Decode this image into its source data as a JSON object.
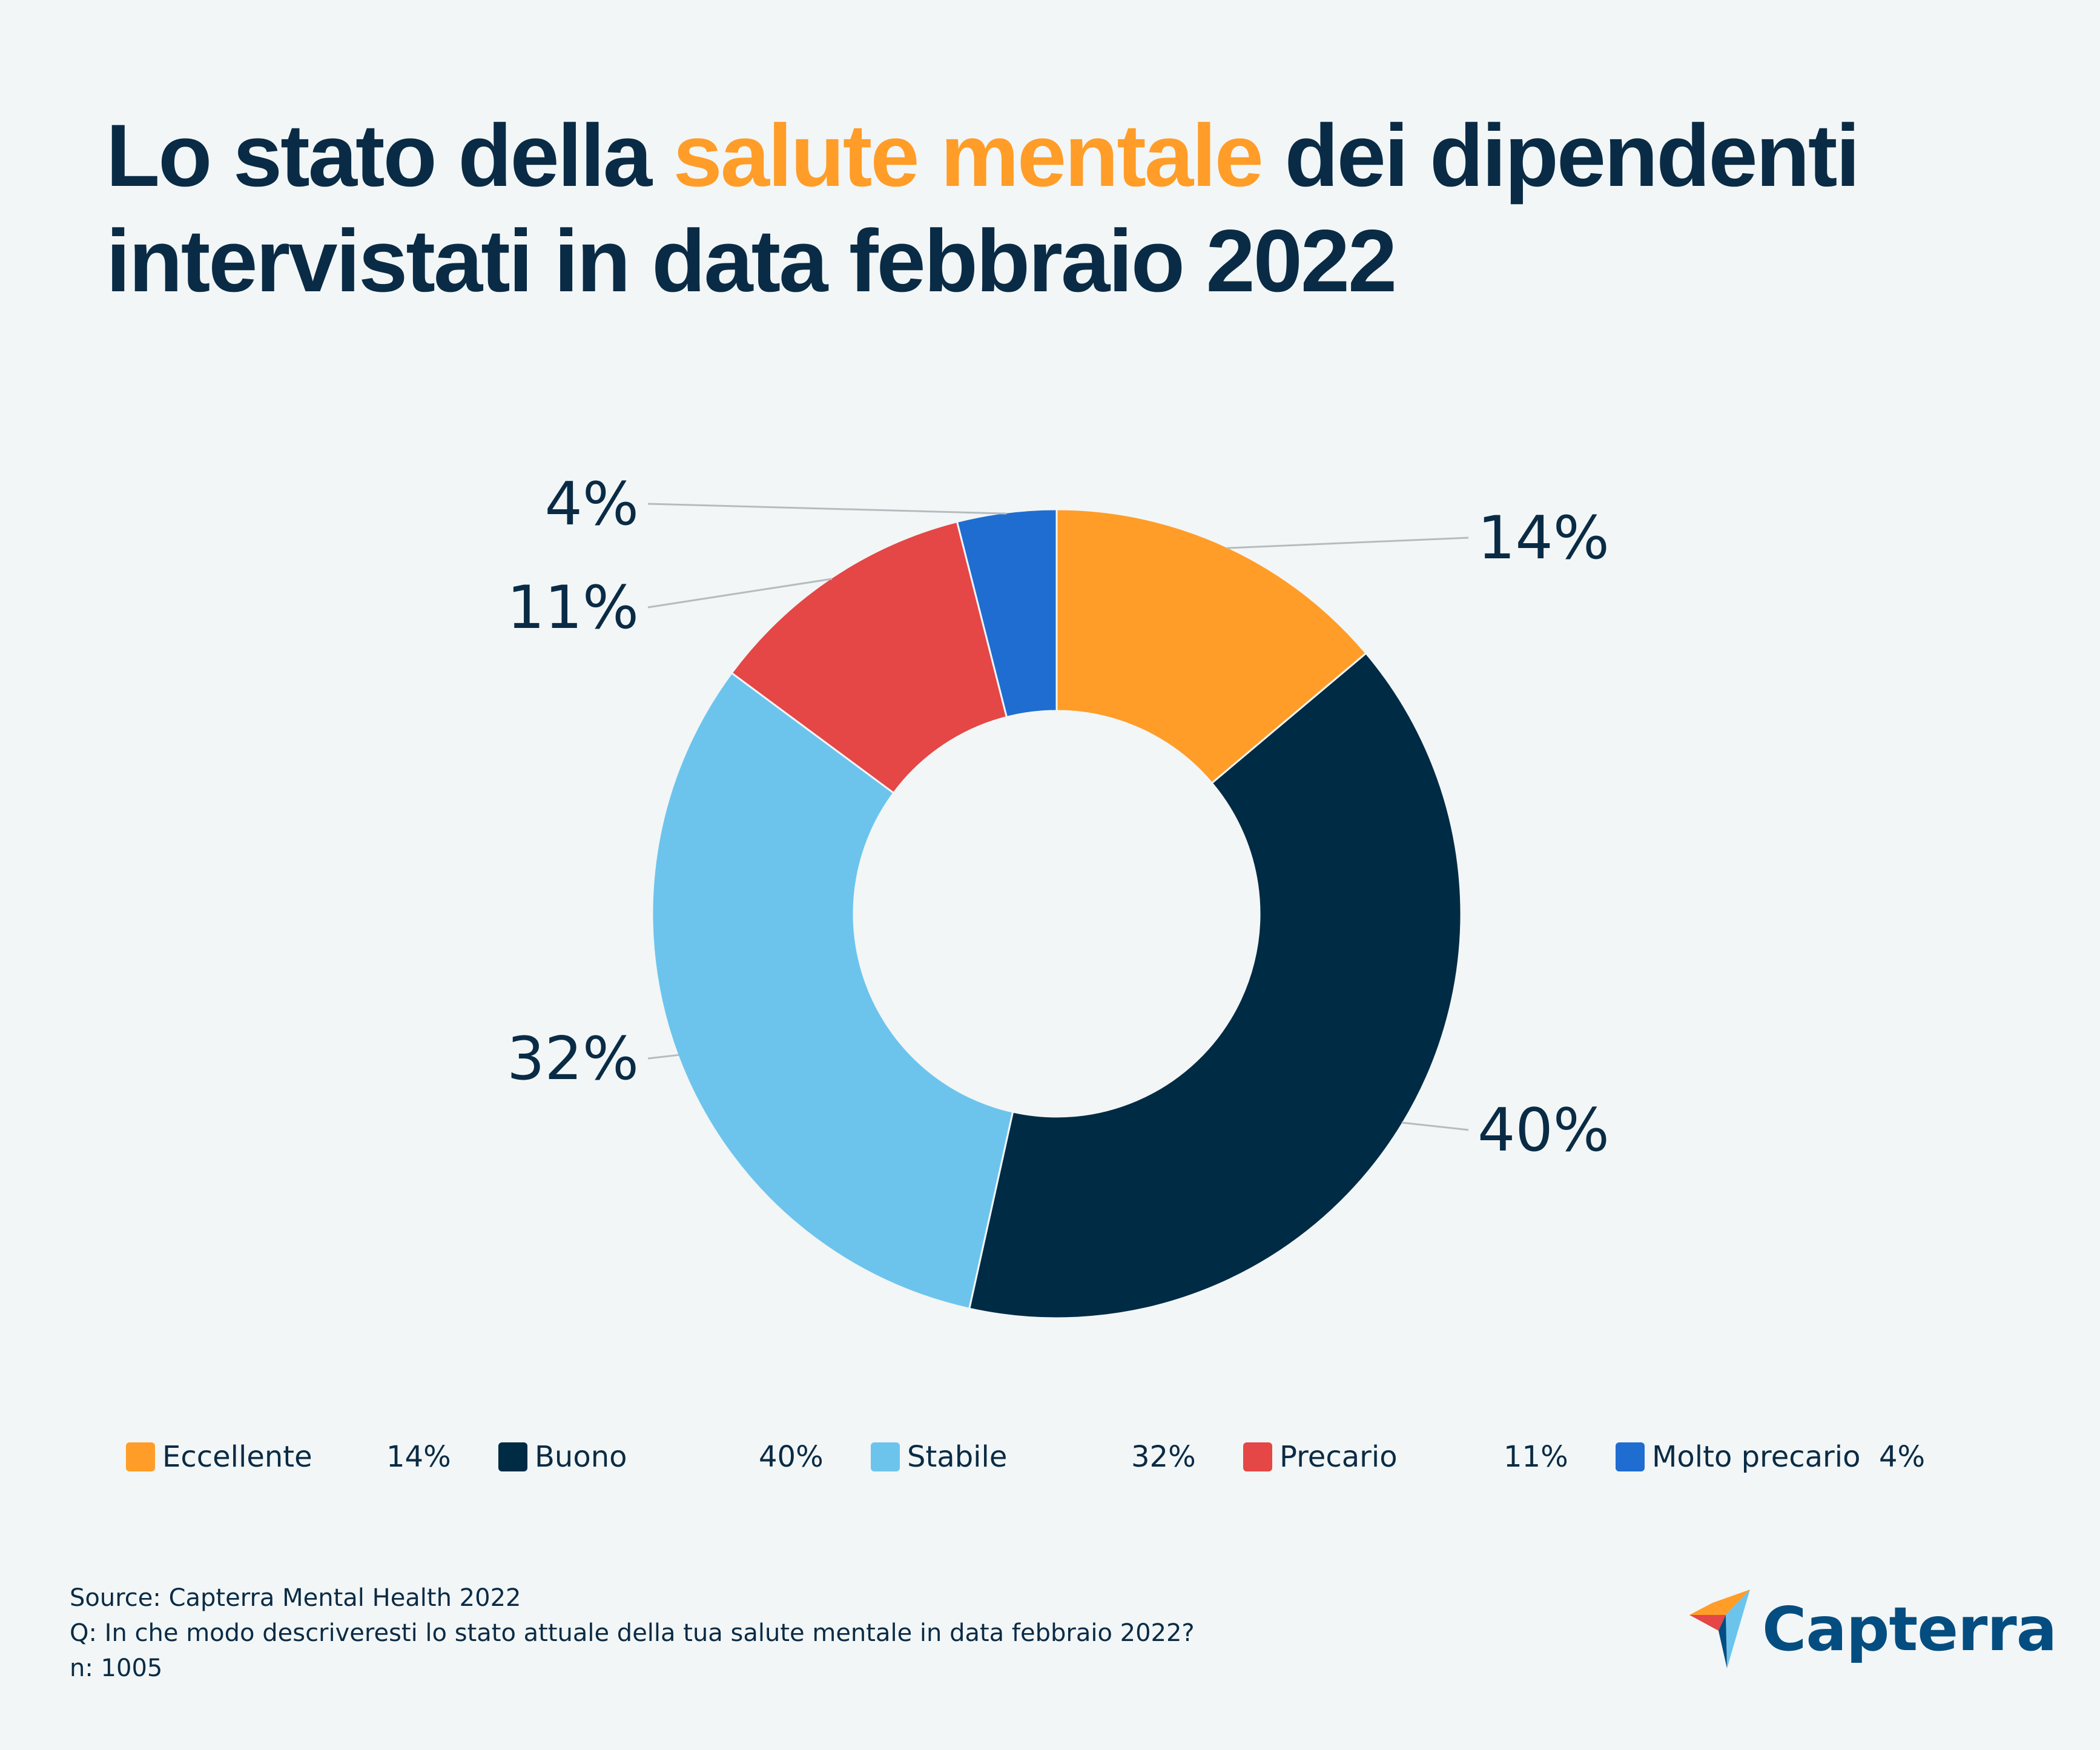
{
  "title": {
    "part1": "Lo stato della ",
    "highlight": "salute mentale",
    "part2": " dei dipendenti intervistati in data febbraio 2022",
    "highlight_color": "#ff9d28"
  },
  "chart_data": {
    "type": "pie",
    "variant": "donut",
    "title": "Lo stato della salute mentale dei dipendenti intervistati in data febbraio 2022",
    "categories": [
      "Eccellente",
      "Buono",
      "Stabile",
      "Precario",
      "Molto precario"
    ],
    "values": [
      14,
      40,
      32,
      11,
      4
    ],
    "labels": [
      "14%",
      "40%",
      "32%",
      "11%",
      "4%"
    ],
    "colors": [
      "#ff9d28",
      "#002b45",
      "#6cc4ed",
      "#e54646",
      "#1f6dd1"
    ],
    "unit": "%"
  },
  "legend": {
    "items": [
      {
        "label": "Eccellente",
        "value": "14%",
        "color": "#ff9d28"
      },
      {
        "label": "Buono",
        "value": "40%",
        "color": "#002b45"
      },
      {
        "label": "Stabile",
        "value": "32%",
        "color": "#6cc4ed"
      },
      {
        "label": "Precario",
        "value": "11%",
        "color": "#e54646"
      },
      {
        "label": "Molto precario",
        "value": "4%",
        "color": "#1f6dd1"
      }
    ]
  },
  "footer": {
    "source": "Source: Capterra Mental Health 2022",
    "question": "Q: In che modo descriveresti lo stato attuale della tua salute mentale in data febbraio 2022?",
    "sample": "n: 1005"
  },
  "logo": {
    "text": "Capterra",
    "icon": "capterra-arrow-icon"
  }
}
